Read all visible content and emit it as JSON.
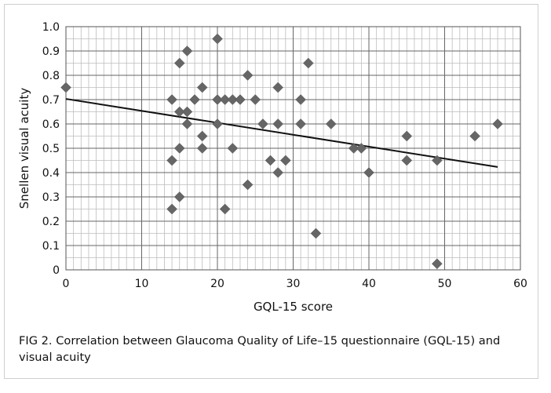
{
  "caption": {
    "figure_label": "FIG 2.",
    "text": "Correlation between Glaucoma Quality of Life–15 questionnaire (GQL-15) and visual acuity"
  },
  "chart_data": {
    "type": "scatter",
    "xlabel": "GQL-15 score",
    "ylabel": "Snellen visual acuity",
    "xlim": [
      0,
      60
    ],
    "ylim": [
      0,
      1.0
    ],
    "x_ticks": [
      "0",
      "10",
      "20",
      "30",
      "40",
      "50",
      "60"
    ],
    "y_ticks": [
      "0",
      "0.1",
      "0.2",
      "0.3",
      "0.4",
      "0.5",
      "0.6",
      "0.7",
      "0.8",
      "0.9",
      "1.0"
    ],
    "x_minor_step": 1,
    "y_minor_step": 0.05,
    "grid": true,
    "marker": "diamond",
    "marker_color": "#666666",
    "points": [
      [
        0,
        0.75
      ],
      [
        14,
        0.7
      ],
      [
        14,
        0.45
      ],
      [
        14,
        0.25
      ],
      [
        15,
        0.85
      ],
      [
        15,
        0.65
      ],
      [
        15,
        0.5
      ],
      [
        15,
        0.3
      ],
      [
        16,
        0.9
      ],
      [
        16,
        0.65
      ],
      [
        16,
        0.6
      ],
      [
        17,
        0.7
      ],
      [
        18,
        0.75
      ],
      [
        18,
        0.55
      ],
      [
        18,
        0.5
      ],
      [
        20,
        0.95
      ],
      [
        20,
        0.7
      ],
      [
        20,
        0.6
      ],
      [
        21,
        0.7
      ],
      [
        21,
        0.25
      ],
      [
        22,
        0.7
      ],
      [
        22,
        0.5
      ],
      [
        23,
        0.7
      ],
      [
        24,
        0.8
      ],
      [
        24,
        0.35
      ],
      [
        25,
        0.7
      ],
      [
        26,
        0.6
      ],
      [
        27,
        0.45
      ],
      [
        28,
        0.75
      ],
      [
        28,
        0.6
      ],
      [
        28,
        0.4
      ],
      [
        29,
        0.45
      ],
      [
        31,
        0.7
      ],
      [
        31,
        0.6
      ],
      [
        32,
        0.85
      ],
      [
        33,
        0.15
      ],
      [
        35,
        0.6
      ],
      [
        38,
        0.5
      ],
      [
        39,
        0.5
      ],
      [
        40,
        0.4
      ],
      [
        45,
        0.55
      ],
      [
        45,
        0.45
      ],
      [
        49,
        0.45
      ],
      [
        49,
        0.025
      ],
      [
        54,
        0.55
      ],
      [
        57,
        0.6
      ]
    ],
    "trendline": {
      "x": [
        0,
        57
      ],
      "y": [
        0.703,
        0.423
      ]
    }
  }
}
